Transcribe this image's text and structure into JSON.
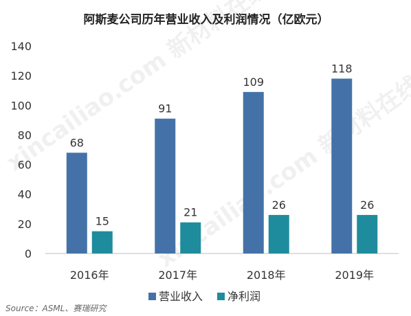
{
  "colors": {
    "revenue": "#4472a8",
    "profit": "#1e8c9c",
    "axis": "#bfbfbf",
    "text": "#333333"
  },
  "watermark": "xincailiao.com 新材料在线",
  "chart_data": {
    "type": "bar",
    "title": "阿斯麦公司历年营业收入及利润情况（亿欧元）",
    "categories": [
      "2016年",
      "2017年",
      "2018年",
      "2019年"
    ],
    "series": [
      {
        "name": "营业收入",
        "color": "#4472a8",
        "values": [
          68,
          91,
          109,
          118
        ]
      },
      {
        "name": "净利润",
        "color": "#1e8c9c",
        "values": [
          15,
          21,
          26,
          26
        ]
      }
    ],
    "yticks": [
      "0",
      "20",
      "40",
      "60",
      "80",
      "100",
      "120",
      "140"
    ],
    "ylim": [
      0,
      140
    ],
    "grid": false,
    "legend_position": "bottom-center",
    "source": "Source：ASML、赛瑞研究"
  }
}
